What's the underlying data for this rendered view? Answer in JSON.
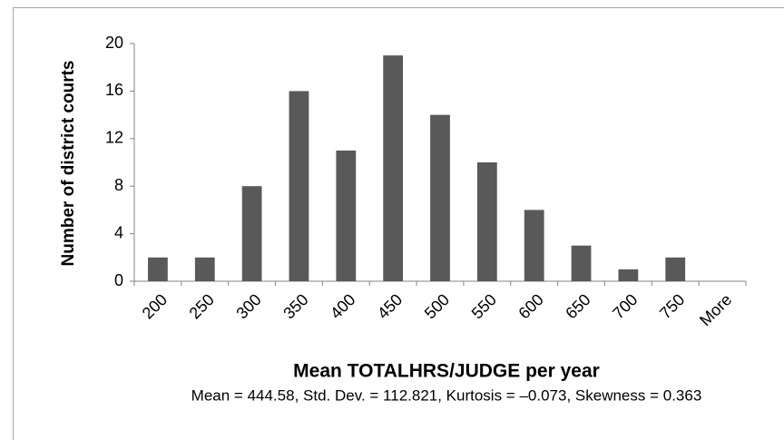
{
  "chart_data": {
    "type": "bar",
    "x_label": "Mean TOTALHRS/JUDGE per year",
    "y_label": "Number of district courts",
    "annotation": "Mean = 444.58, Std. Dev. = 112.821, Kurtosis = –0.073, Skewness = 0.363",
    "categories": [
      "200",
      "250",
      "300",
      "350",
      "400",
      "450",
      "500",
      "550",
      "600",
      "650",
      "700",
      "750",
      "More"
    ],
    "values": [
      2,
      2,
      8,
      16,
      11,
      19,
      14,
      10,
      6,
      3,
      1,
      2,
      0
    ],
    "color": "#595959",
    "ylim": [
      0,
      20
    ],
    "yticks": [
      0,
      4,
      8,
      12,
      16,
      20
    ],
    "grid": false
  }
}
